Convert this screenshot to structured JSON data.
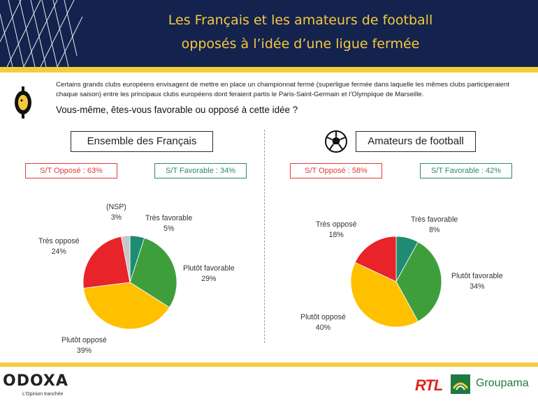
{
  "header": {
    "title_line1": "Les Français et les amateurs de football",
    "title_line2": "opposés à l’idée d’une ligue fermée",
    "background": "#13234d",
    "title_color": "#f6c83e"
  },
  "intro": {
    "text": "Certains grands clubs européens envisagent de mettre en place un championnat fermé (superligue fermée dans laquelle les mêmes clubs participeraient chaque saison) entre les principaux clubs européens dont feraient partis le Paris-Saint-Germain et l’Olympique de Marseille.",
    "question": "Vous-même, êtes-vous favorable ou opposé à cette idée ?",
    "icon": "coin-mascot-icon"
  },
  "panels": {
    "left": {
      "title": "Ensemble des Français",
      "st_oppose": "S/T Opposé : 63%",
      "st_favorable": "S/T Favorable : 34%"
    },
    "right": {
      "title": "Amateurs de football",
      "icon": "football-icon",
      "st_oppose": "S/T Opposé : 58%",
      "st_favorable": "S/T Favorable : 42%"
    }
  },
  "colors": {
    "tres_favorable": "#1e8c73",
    "plutot_favorable": "#3f9e3c",
    "plutot_oppose": "#ffc000",
    "tres_oppose": "#e8232a",
    "nsp": "#c8c8c8",
    "accent_gold": "#f5cd3b"
  },
  "chart_data": [
    {
      "type": "pie",
      "title": "Ensemble des Français",
      "slices": [
        {
          "label": "Très favorable",
          "value": 5,
          "display": "5%"
        },
        {
          "label": "Plutôt favorable",
          "value": 29,
          "display": "29%"
        },
        {
          "label": "Plutôt opposé",
          "value": 39,
          "display": "39%"
        },
        {
          "label": "Très opposé",
          "value": 24,
          "display": "24%"
        },
        {
          "label": "(NSP)",
          "value": 3,
          "display": "3%"
        }
      ]
    },
    {
      "type": "pie",
      "title": "Amateurs de football",
      "slices": [
        {
          "label": "Très favorable",
          "value": 8,
          "display": "8%"
        },
        {
          "label": "Plutôt favorable",
          "value": 34,
          "display": "34%"
        },
        {
          "label": "Plutôt opposé",
          "value": 40,
          "display": "40%"
        },
        {
          "label": "Très opposé",
          "value": 18,
          "display": "18%"
        }
      ]
    }
  ],
  "footer": {
    "odoxa": "ODOXA",
    "odoxa_tagline": "L’Opinion tranchée",
    "rtl": "RTL",
    "groupama": "Groupama"
  }
}
